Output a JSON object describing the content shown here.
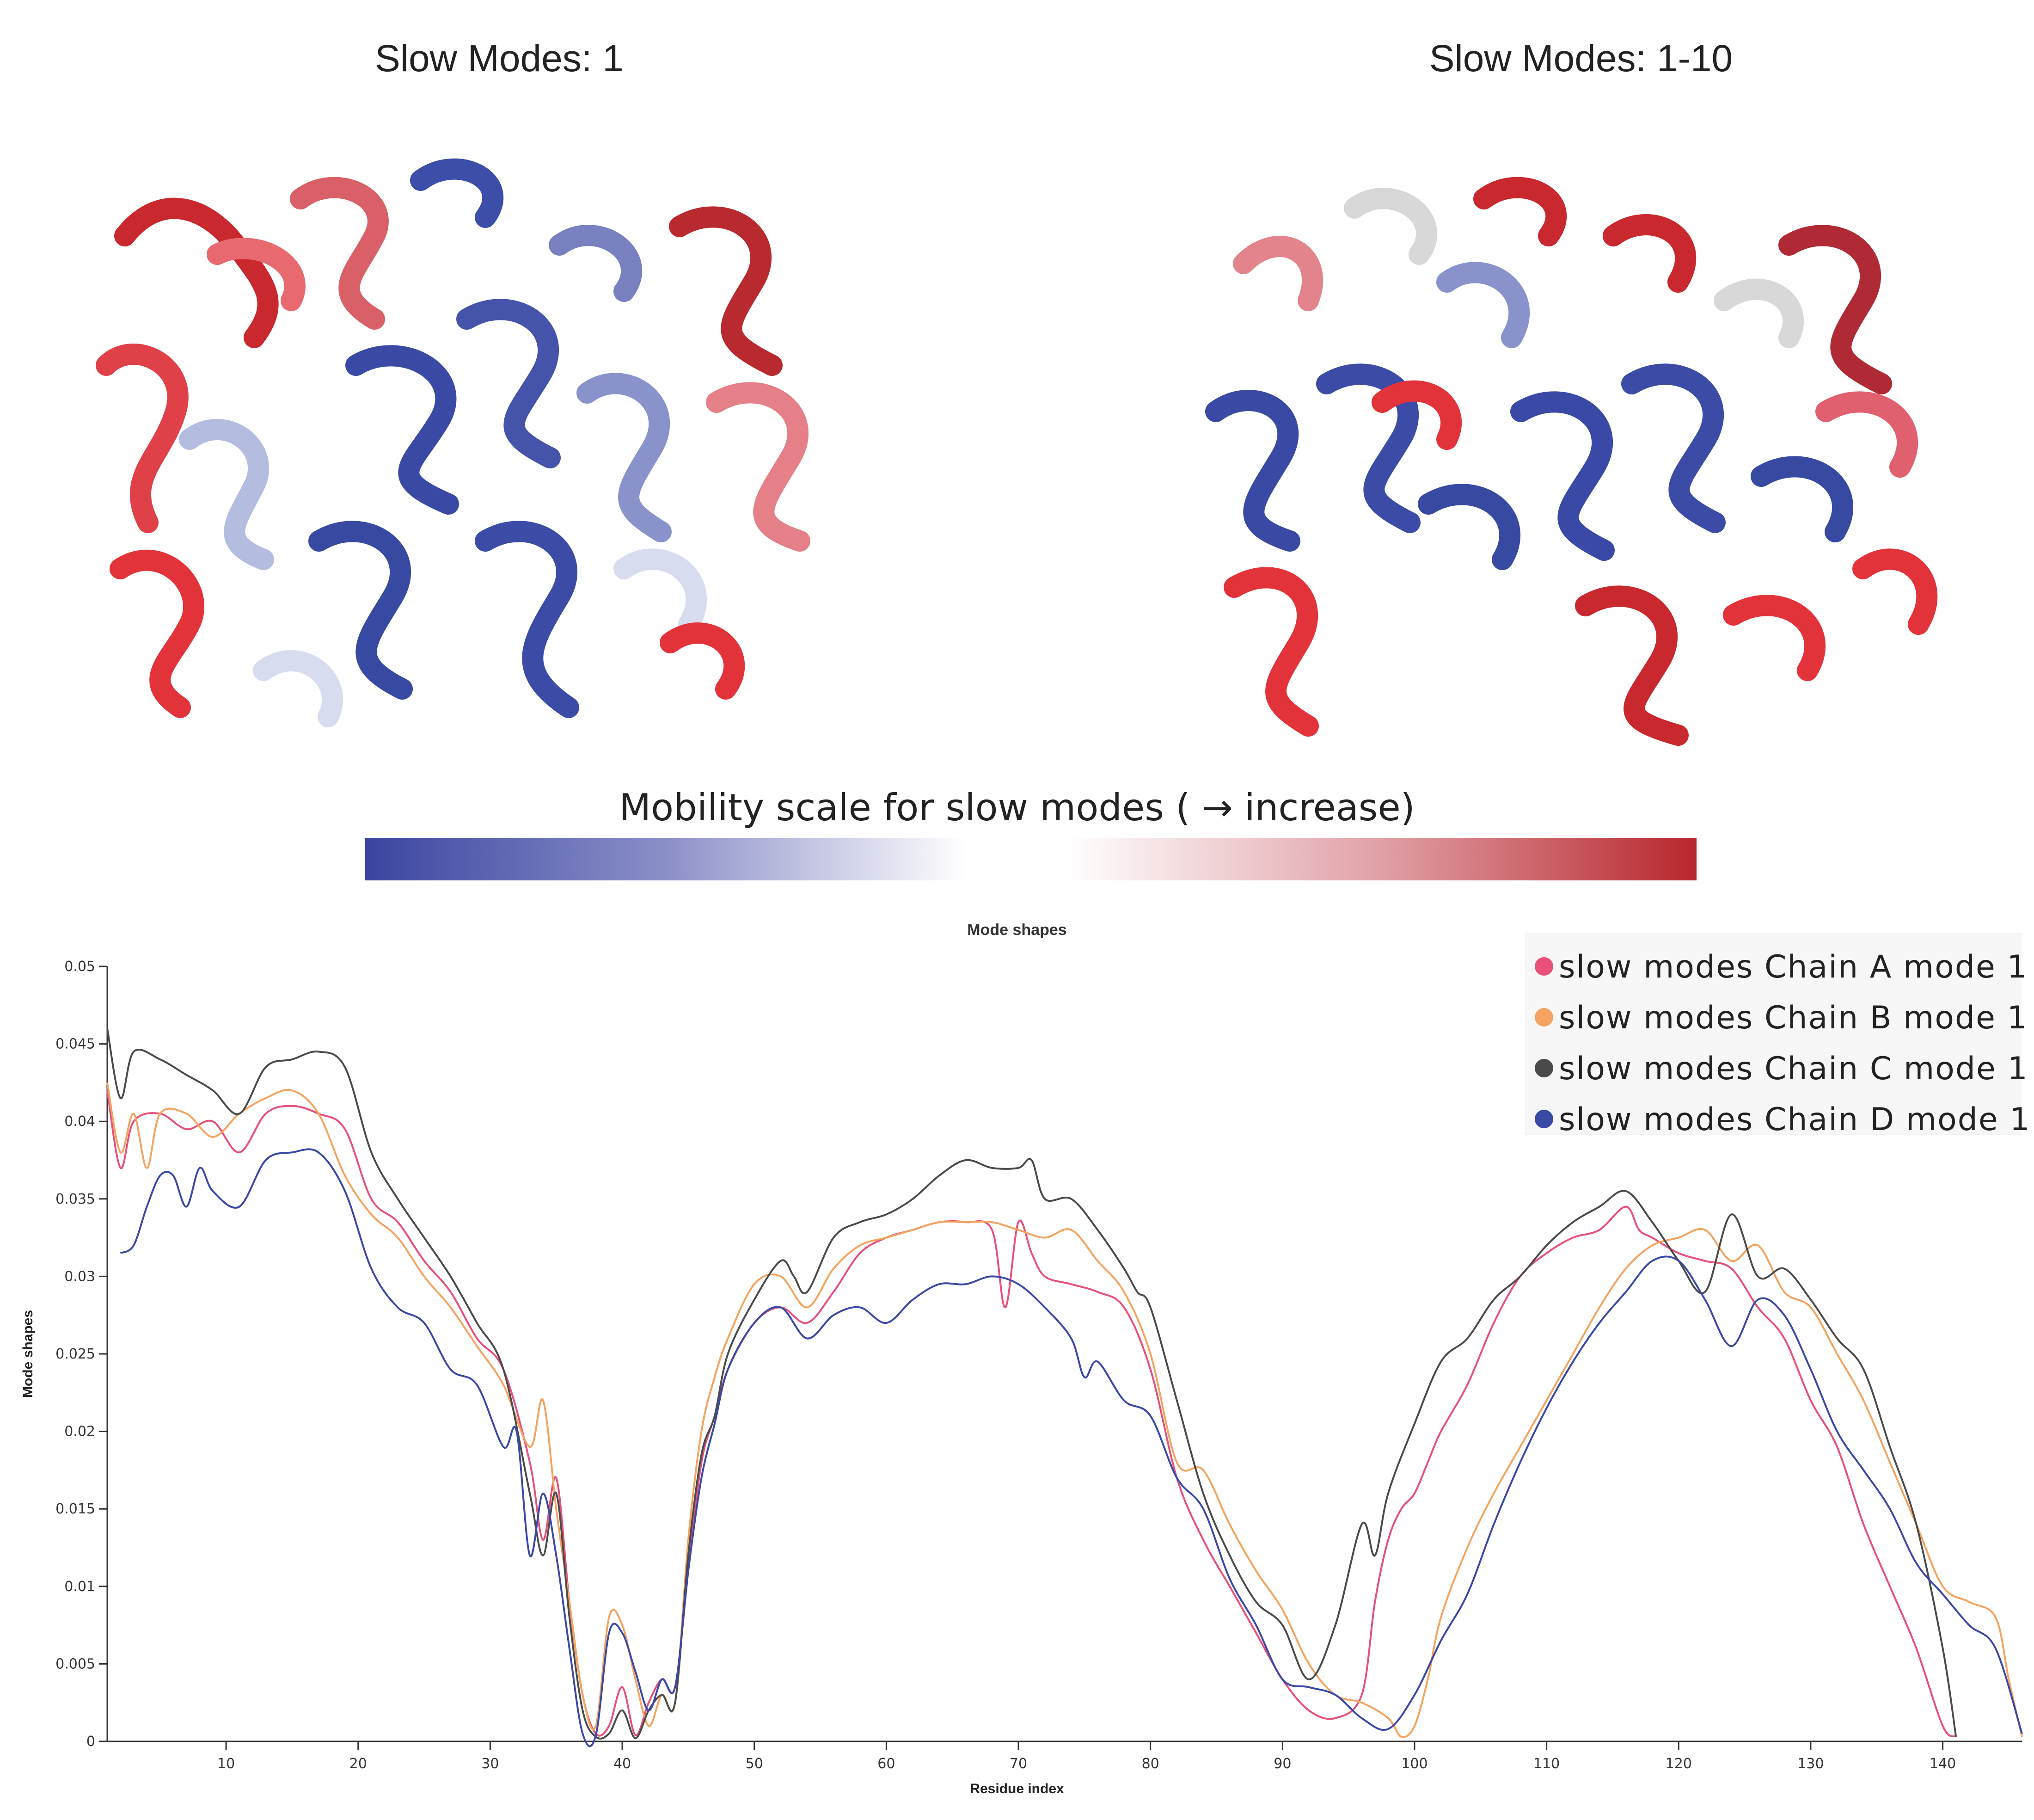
{
  "panels": {
    "left_title": "Slow Modes: 1",
    "right_title": "Slow Modes: 1-10"
  },
  "mobility_scale": {
    "title": "Mobility scale for slow modes ( → increase)",
    "low_color": "#3a45a0",
    "mid_color": "#ffffff",
    "high_color": "#b8262d"
  },
  "chart_data": {
    "type": "line",
    "title": "Mode shapes",
    "xlabel": "Residue index",
    "ylabel": "Mode shapes",
    "xlim": [
      1,
      146
    ],
    "ylim": [
      0,
      0.05
    ],
    "xticks": [
      10,
      20,
      30,
      40,
      50,
      60,
      70,
      80,
      90,
      100,
      110,
      120,
      130,
      140
    ],
    "yticks": [
      0,
      0.005,
      0.01,
      0.015,
      0.02,
      0.025,
      0.03,
      0.035,
      0.04,
      0.045,
      0.05
    ],
    "ytick_labels": [
      "0",
      "0.005",
      "0.01",
      "0.015",
      "0.02",
      "0.025",
      "0.03",
      "0.035",
      "0.04",
      "0.045",
      "0.05"
    ],
    "legend_position": "top-right",
    "series": [
      {
        "name": "slow modes Chain A mode 1",
        "color": "#e8507a",
        "x": [
          1,
          2,
          3,
          5,
          7,
          9,
          11,
          13,
          15,
          17,
          19,
          21,
          23,
          25,
          27,
          29,
          31,
          33,
          34,
          35,
          36,
          37,
          38,
          39,
          40,
          41,
          42,
          43,
          44,
          45,
          46,
          47,
          48,
          50,
          52,
          54,
          56,
          58,
          60,
          62,
          64,
          66,
          68,
          69,
          70,
          71,
          72,
          74,
          76,
          78,
          80,
          82,
          84,
          86,
          88,
          90,
          92,
          94,
          96,
          97,
          98,
          99,
          100,
          101,
          102,
          104,
          106,
          108,
          110,
          112,
          114,
          116,
          117,
          118,
          120,
          122,
          124,
          126,
          128,
          130,
          132,
          134,
          136,
          138,
          140,
          141
        ],
        "y": [
          0.042,
          0.037,
          0.04,
          0.0405,
          0.0395,
          0.04,
          0.038,
          0.0405,
          0.041,
          0.0405,
          0.0395,
          0.035,
          0.0335,
          0.031,
          0.029,
          0.026,
          0.024,
          0.018,
          0.013,
          0.017,
          0.009,
          0.003,
          0.0005,
          0.001,
          0.0035,
          0.0004,
          0.0025,
          0.004,
          0.0035,
          0.011,
          0.018,
          0.021,
          0.024,
          0.027,
          0.028,
          0.027,
          0.029,
          0.0315,
          0.0325,
          0.033,
          0.0335,
          0.0335,
          0.033,
          0.028,
          0.0335,
          0.0315,
          0.03,
          0.0295,
          0.029,
          0.028,
          0.024,
          0.017,
          0.013,
          0.01,
          0.007,
          0.004,
          0.002,
          0.0015,
          0.003,
          0.009,
          0.013,
          0.015,
          0.016,
          0.018,
          0.02,
          0.023,
          0.027,
          0.03,
          0.0315,
          0.0325,
          0.033,
          0.0345,
          0.033,
          0.0325,
          0.0315,
          0.031,
          0.0305,
          0.028,
          0.026,
          0.022,
          0.019,
          0.014,
          0.01,
          0.006,
          0.001,
          0.0003
        ]
      },
      {
        "name": "slow modes Chain B mode 1",
        "color": "#f4a460",
        "x": [
          1,
          2,
          3,
          4,
          5,
          7,
          9,
          11,
          13,
          15,
          17,
          19,
          21,
          23,
          25,
          27,
          29,
          31,
          33,
          34,
          35,
          36,
          37,
          38,
          39,
          40,
          41,
          42,
          43,
          44,
          45,
          46,
          47,
          48,
          50,
          52,
          54,
          56,
          58,
          60,
          62,
          64,
          66,
          68,
          70,
          72,
          74,
          76,
          78,
          80,
          82,
          84,
          86,
          88,
          90,
          92,
          94,
          96,
          98,
          99,
          100,
          101,
          102,
          104,
          106,
          108,
          110,
          112,
          114,
          116,
          118,
          120,
          122,
          124,
          126,
          128,
          130,
          132,
          134,
          136,
          138,
          140,
          142,
          144,
          145,
          146
        ],
        "y": [
          0.0425,
          0.038,
          0.0405,
          0.037,
          0.0405,
          0.0405,
          0.039,
          0.0405,
          0.0415,
          0.042,
          0.0405,
          0.0365,
          0.034,
          0.0325,
          0.03,
          0.028,
          0.0255,
          0.023,
          0.019,
          0.022,
          0.015,
          0.009,
          0.003,
          0.001,
          0.008,
          0.0075,
          0.004,
          0.001,
          0.003,
          0.0025,
          0.013,
          0.02,
          0.0235,
          0.026,
          0.0295,
          0.03,
          0.028,
          0.0305,
          0.032,
          0.0325,
          0.033,
          0.0335,
          0.0335,
          0.0335,
          0.033,
          0.0325,
          0.033,
          0.031,
          0.029,
          0.025,
          0.018,
          0.0175,
          0.014,
          0.011,
          0.0085,
          0.005,
          0.003,
          0.0025,
          0.0015,
          0.0003,
          0.001,
          0.004,
          0.008,
          0.0125,
          0.016,
          0.019,
          0.022,
          0.025,
          0.028,
          0.0305,
          0.032,
          0.0325,
          0.033,
          0.031,
          0.032,
          0.029,
          0.028,
          0.025,
          0.022,
          0.018,
          0.014,
          0.01,
          0.009,
          0.008,
          0.004,
          0.0003
        ]
      },
      {
        "name": "slow modes Chain C mode 1",
        "color": "#4a4a4a",
        "x": [
          1,
          2,
          3,
          5,
          7,
          9,
          11,
          13,
          15,
          17,
          19,
          21,
          23,
          25,
          27,
          29,
          31,
          33,
          34,
          35,
          36,
          37,
          38,
          39,
          40,
          41,
          42,
          43,
          44,
          45,
          46,
          47,
          48,
          50,
          52,
          53,
          54,
          56,
          58,
          60,
          62,
          64,
          66,
          68,
          70,
          71,
          72,
          74,
          76,
          78,
          79,
          80,
          82,
          84,
          86,
          88,
          90,
          92,
          94,
          96,
          97,
          98,
          100,
          102,
          104,
          106,
          108,
          110,
          112,
          114,
          116,
          118,
          120,
          122,
          124,
          126,
          128,
          130,
          132,
          134,
          136,
          138,
          140,
          141
        ],
        "y": [
          0.046,
          0.0415,
          0.0445,
          0.044,
          0.043,
          0.042,
          0.0405,
          0.0435,
          0.044,
          0.0445,
          0.0435,
          0.038,
          0.035,
          0.0325,
          0.03,
          0.027,
          0.024,
          0.016,
          0.012,
          0.016,
          0.008,
          0.002,
          0.0003,
          0.0005,
          0.002,
          0.0002,
          0.002,
          0.003,
          0.0025,
          0.012,
          0.0185,
          0.021,
          0.025,
          0.0285,
          0.031,
          0.03,
          0.029,
          0.0325,
          0.0335,
          0.034,
          0.035,
          0.0365,
          0.0375,
          0.037,
          0.037,
          0.0375,
          0.035,
          0.035,
          0.033,
          0.0305,
          0.029,
          0.028,
          0.022,
          0.016,
          0.012,
          0.009,
          0.0075,
          0.004,
          0.0075,
          0.014,
          0.012,
          0.016,
          0.0205,
          0.0245,
          0.026,
          0.0285,
          0.03,
          0.032,
          0.0335,
          0.0345,
          0.0355,
          0.0335,
          0.031,
          0.029,
          0.034,
          0.03,
          0.0305,
          0.0285,
          0.026,
          0.024,
          0.019,
          0.014,
          0.006,
          0.0003
        ]
      },
      {
        "name": "slow modes Chain D mode 1",
        "color": "#3a49a6",
        "x": [
          2,
          3,
          4,
          5,
          6,
          7,
          8,
          9,
          11,
          13,
          15,
          17,
          19,
          21,
          23,
          25,
          27,
          29,
          31,
          32,
          33,
          34,
          35,
          36,
          37,
          38,
          39,
          40,
          41,
          42,
          43,
          44,
          45,
          46,
          47,
          48,
          50,
          52,
          54,
          56,
          58,
          60,
          62,
          64,
          66,
          68,
          70,
          72,
          74,
          75,
          76,
          78,
          80,
          82,
          84,
          86,
          88,
          90,
          92,
          94,
          96,
          98,
          100,
          102,
          104,
          106,
          108,
          110,
          112,
          114,
          116,
          118,
          120,
          122,
          124,
          126,
          128,
          130,
          132,
          134,
          136,
          138,
          140,
          142,
          144,
          146
        ],
        "y": [
          0.0315,
          0.032,
          0.0345,
          0.0365,
          0.0365,
          0.0345,
          0.037,
          0.0355,
          0.0345,
          0.0375,
          0.038,
          0.038,
          0.0355,
          0.0305,
          0.028,
          0.027,
          0.024,
          0.023,
          0.019,
          0.02,
          0.012,
          0.016,
          0.012,
          0.006,
          0.0005,
          0.0004,
          0.007,
          0.007,
          0.0045,
          0.002,
          0.004,
          0.0035,
          0.011,
          0.017,
          0.0205,
          0.024,
          0.027,
          0.028,
          0.026,
          0.0275,
          0.028,
          0.027,
          0.0285,
          0.0295,
          0.0295,
          0.03,
          0.0295,
          0.028,
          0.026,
          0.0235,
          0.0245,
          0.022,
          0.021,
          0.017,
          0.015,
          0.0105,
          0.0075,
          0.004,
          0.0035,
          0.003,
          0.0015,
          0.0008,
          0.003,
          0.0065,
          0.0095,
          0.014,
          0.018,
          0.0215,
          0.0245,
          0.027,
          0.029,
          0.031,
          0.031,
          0.0285,
          0.0255,
          0.0285,
          0.0275,
          0.024,
          0.02,
          0.0175,
          0.015,
          0.0115,
          0.0095,
          0.0075,
          0.006,
          0.0005
        ]
      }
    ]
  }
}
